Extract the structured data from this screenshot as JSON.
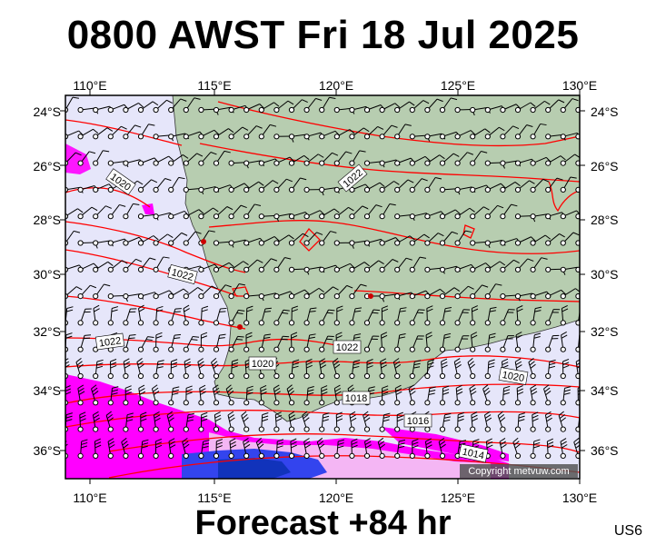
{
  "title": "0800 AWST Fri 18 Jul 2025",
  "footer": "Forecast +84 hr",
  "code": "US6",
  "copyright": "Copyright metvuw.com",
  "map": {
    "lon_labels": [
      "110°E",
      "115°E",
      "120°E",
      "125°E",
      "130°E"
    ],
    "lat_labels": [
      "24°S",
      "26°S",
      "28°S",
      "30°S",
      "32°S",
      "34°S",
      "36°S"
    ],
    "isobar_labels": [
      "1020",
      "1022",
      "1022",
      "1022",
      "1020",
      "1022",
      "1020",
      "1018",
      "1016",
      "1014"
    ],
    "colors": {
      "ocean": "#e6e6fa",
      "land": "#b7cdb0",
      "isobar": "#ff0000",
      "rain_light": "#ff00ff",
      "rain_heavy": "#0000ff"
    }
  }
}
